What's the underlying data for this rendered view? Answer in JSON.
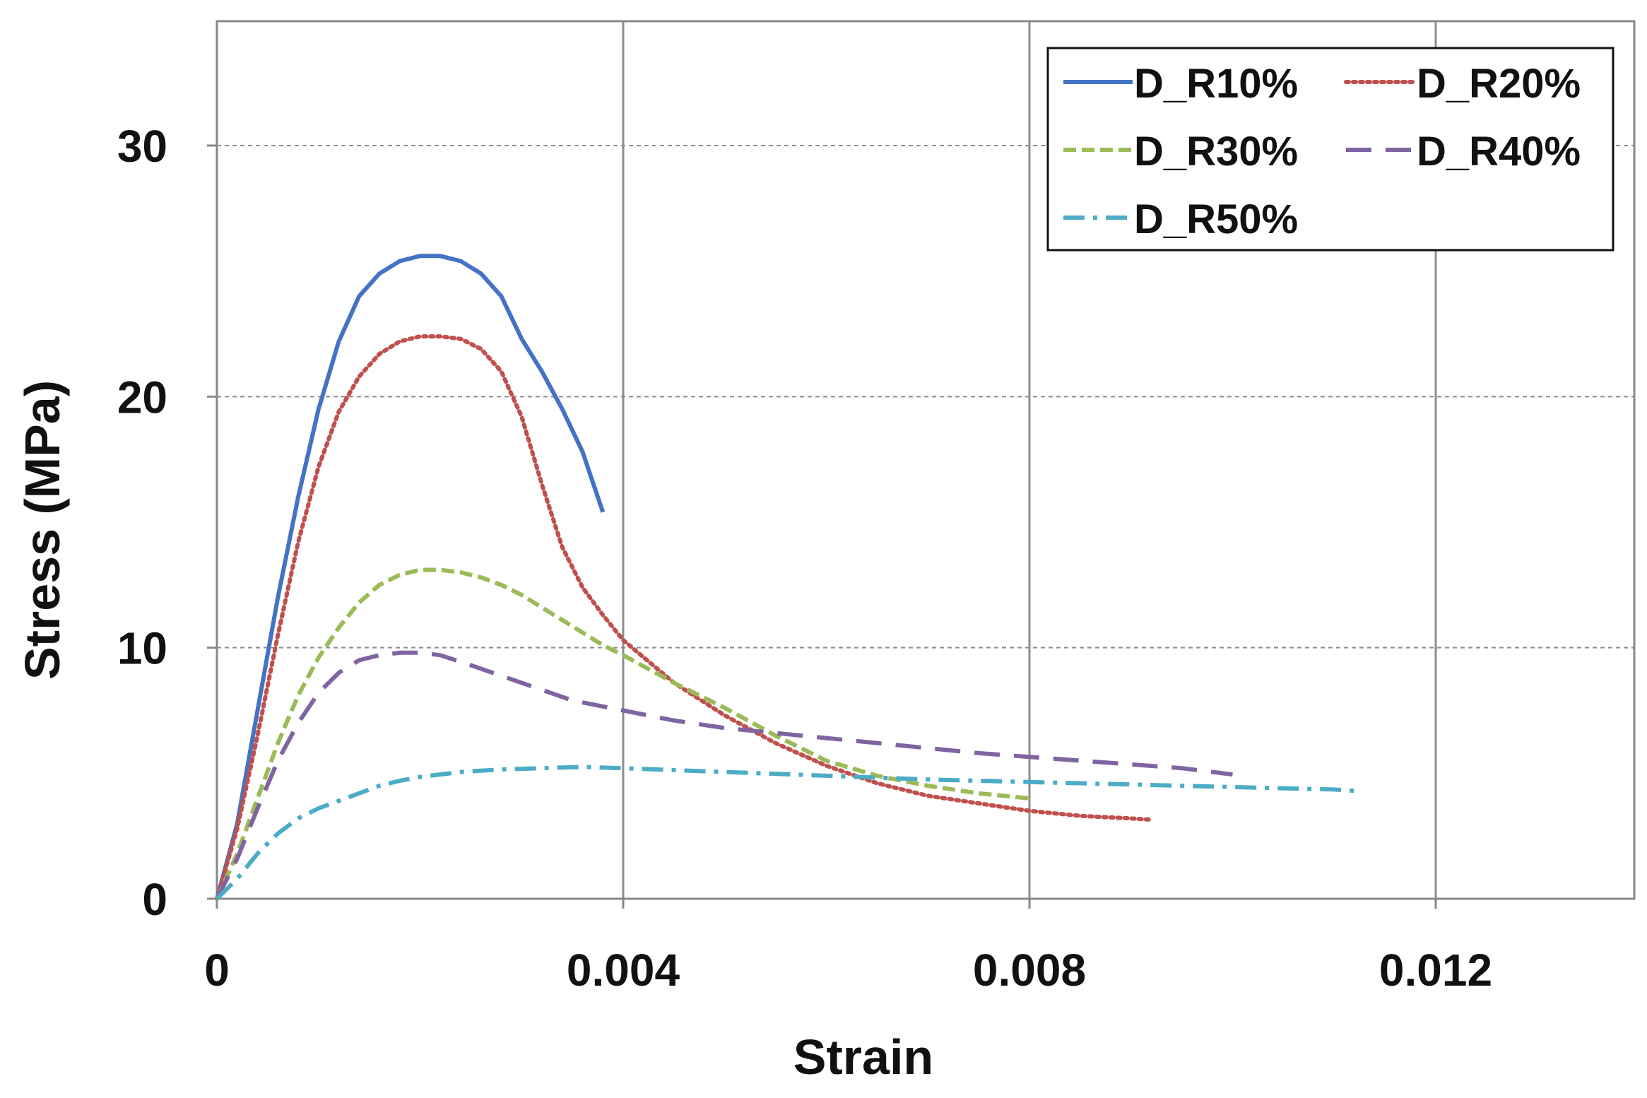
{
  "chart_data": {
    "type": "line",
    "title": "",
    "xlabel": "Strain",
    "ylabel": "Stress (MPa)",
    "xlim": [
      0,
      0.014
    ],
    "ylim": [
      0,
      35
    ],
    "xticks": [
      0,
      0.004,
      0.008,
      0.012
    ],
    "xtick_labels": [
      "0",
      "0.004",
      "0.008",
      "0.012"
    ],
    "yticks": [
      0,
      10,
      20,
      30
    ],
    "ytick_labels": [
      "0",
      "10",
      "20",
      "30"
    ],
    "grid": "x solid, y dashed",
    "legend_position": "top-right",
    "series": [
      {
        "name": "D_R10%",
        "color": "#4472C4",
        "style": "solid",
        "points": [
          [
            0,
            0
          ],
          [
            0.0002,
            3
          ],
          [
            0.0004,
            7.5
          ],
          [
            0.0006,
            12
          ],
          [
            0.0008,
            16
          ],
          [
            0.001,
            19.5
          ],
          [
            0.0012,
            22.2
          ],
          [
            0.0014,
            24
          ],
          [
            0.0016,
            24.9
          ],
          [
            0.0018,
            25.4
          ],
          [
            0.002,
            25.6
          ],
          [
            0.0022,
            25.6
          ],
          [
            0.0024,
            25.4
          ],
          [
            0.0026,
            24.9
          ],
          [
            0.0028,
            24
          ],
          [
            0.003,
            22.3
          ],
          [
            0.0032,
            21
          ],
          [
            0.0034,
            19.5
          ],
          [
            0.0036,
            17.8
          ],
          [
            0.0038,
            15.4
          ]
        ]
      },
      {
        "name": "D_R20%",
        "color": "#C0504D",
        "style": "dotted",
        "points": [
          [
            0,
            0
          ],
          [
            0.0002,
            2.8
          ],
          [
            0.0004,
            6.5
          ],
          [
            0.0006,
            10.5
          ],
          [
            0.0008,
            14.2
          ],
          [
            0.001,
            17.2
          ],
          [
            0.0012,
            19.4
          ],
          [
            0.0014,
            20.8
          ],
          [
            0.0016,
            21.7
          ],
          [
            0.0018,
            22.2
          ],
          [
            0.002,
            22.4
          ],
          [
            0.0022,
            22.4
          ],
          [
            0.0024,
            22.3
          ],
          [
            0.0026,
            21.9
          ],
          [
            0.0028,
            21
          ],
          [
            0.003,
            19.2
          ],
          [
            0.0032,
            16.5
          ],
          [
            0.0034,
            14
          ],
          [
            0.0036,
            12.4
          ],
          [
            0.0038,
            11.3
          ],
          [
            0.004,
            10.3
          ],
          [
            0.0045,
            8.6
          ],
          [
            0.005,
            7.3
          ],
          [
            0.0055,
            6.2
          ],
          [
            0.006,
            5.3
          ],
          [
            0.0065,
            4.6
          ],
          [
            0.007,
            4.1
          ],
          [
            0.0075,
            3.8
          ],
          [
            0.008,
            3.5
          ],
          [
            0.0085,
            3.3
          ],
          [
            0.009,
            3.2
          ],
          [
            0.0092,
            3.15
          ]
        ]
      },
      {
        "name": "D_R30%",
        "color": "#9BBB59",
        "style": "dashed",
        "points": [
          [
            0,
            0
          ],
          [
            0.0002,
            1.8
          ],
          [
            0.0004,
            4
          ],
          [
            0.0006,
            6.2
          ],
          [
            0.0008,
            8.1
          ],
          [
            0.001,
            9.6
          ],
          [
            0.0012,
            10.8
          ],
          [
            0.0014,
            11.8
          ],
          [
            0.0016,
            12.5
          ],
          [
            0.0018,
            12.9
          ],
          [
            0.002,
            13.1
          ],
          [
            0.0022,
            13.1
          ],
          [
            0.0024,
            13
          ],
          [
            0.0026,
            12.8
          ],
          [
            0.0028,
            12.5
          ],
          [
            0.003,
            12.1
          ],
          [
            0.0032,
            11.6
          ],
          [
            0.0034,
            11.1
          ],
          [
            0.0036,
            10.6
          ],
          [
            0.0038,
            10.1
          ],
          [
            0.004,
            9.7
          ],
          [
            0.0045,
            8.6
          ],
          [
            0.005,
            7.6
          ],
          [
            0.0055,
            6.5
          ],
          [
            0.006,
            5.5
          ],
          [
            0.0065,
            4.9
          ],
          [
            0.007,
            4.5
          ],
          [
            0.0075,
            4.2
          ],
          [
            0.008,
            4
          ]
        ]
      },
      {
        "name": "D_R40%",
        "color": "#8064A2",
        "style": "longdash",
        "points": [
          [
            0,
            0
          ],
          [
            0.0002,
            1.6
          ],
          [
            0.0004,
            3.6
          ],
          [
            0.0006,
            5.5
          ],
          [
            0.0008,
            7
          ],
          [
            0.001,
            8.2
          ],
          [
            0.0012,
            9
          ],
          [
            0.0014,
            9.5
          ],
          [
            0.0016,
            9.7
          ],
          [
            0.0018,
            9.8
          ],
          [
            0.002,
            9.8
          ],
          [
            0.0022,
            9.7
          ],
          [
            0.0025,
            9.3
          ],
          [
            0.003,
            8.6
          ],
          [
            0.0035,
            7.9
          ],
          [
            0.004,
            7.5
          ],
          [
            0.0045,
            7.1
          ],
          [
            0.005,
            6.8
          ],
          [
            0.0055,
            6.6
          ],
          [
            0.006,
            6.4
          ],
          [
            0.0065,
            6.2
          ],
          [
            0.007,
            6
          ],
          [
            0.0075,
            5.8
          ],
          [
            0.008,
            5.65
          ],
          [
            0.0085,
            5.5
          ],
          [
            0.009,
            5.35
          ],
          [
            0.0095,
            5.2
          ],
          [
            0.01,
            4.95
          ]
        ]
      },
      {
        "name": "D_R50%",
        "color": "#4BACC6",
        "style": "dashdot",
        "points": [
          [
            0,
            0
          ],
          [
            0.0002,
            0.8
          ],
          [
            0.0004,
            1.8
          ],
          [
            0.0006,
            2.6
          ],
          [
            0.0008,
            3.2
          ],
          [
            0.001,
            3.6
          ],
          [
            0.0012,
            3.9
          ],
          [
            0.0014,
            4.2
          ],
          [
            0.0016,
            4.5
          ],
          [
            0.0018,
            4.7
          ],
          [
            0.002,
            4.85
          ],
          [
            0.0024,
            5.05
          ],
          [
            0.0028,
            5.15
          ],
          [
            0.0032,
            5.2
          ],
          [
            0.0036,
            5.25
          ],
          [
            0.004,
            5.2
          ],
          [
            0.005,
            5.05
          ],
          [
            0.006,
            4.9
          ],
          [
            0.007,
            4.75
          ],
          [
            0.008,
            4.65
          ],
          [
            0.009,
            4.55
          ],
          [
            0.01,
            4.45
          ],
          [
            0.011,
            4.35
          ],
          [
            0.0112,
            4.3
          ]
        ]
      }
    ]
  }
}
